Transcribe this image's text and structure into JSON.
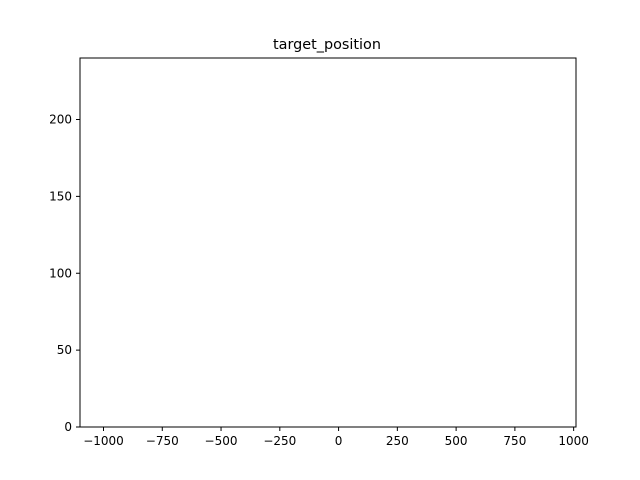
{
  "chart_data": {
    "type": "bar",
    "title": "target_position",
    "xlabel": "",
    "ylabel": "",
    "xlim": [
      -1100,
      1010
    ],
    "ylim": [
      0,
      240
    ],
    "x_ticks": [
      -1000,
      -750,
      -500,
      -250,
      0,
      250,
      500,
      750,
      1000
    ],
    "x_tick_labels": [
      "−1000",
      "−750",
      "−500",
      "−250",
      "0",
      "250",
      "500",
      "750",
      "1000"
    ],
    "y_ticks": [
      0,
      50,
      100,
      150,
      200
    ],
    "y_tick_labels": [
      "0",
      "50",
      "100",
      "150",
      "200"
    ],
    "grid": false,
    "series": []
  }
}
